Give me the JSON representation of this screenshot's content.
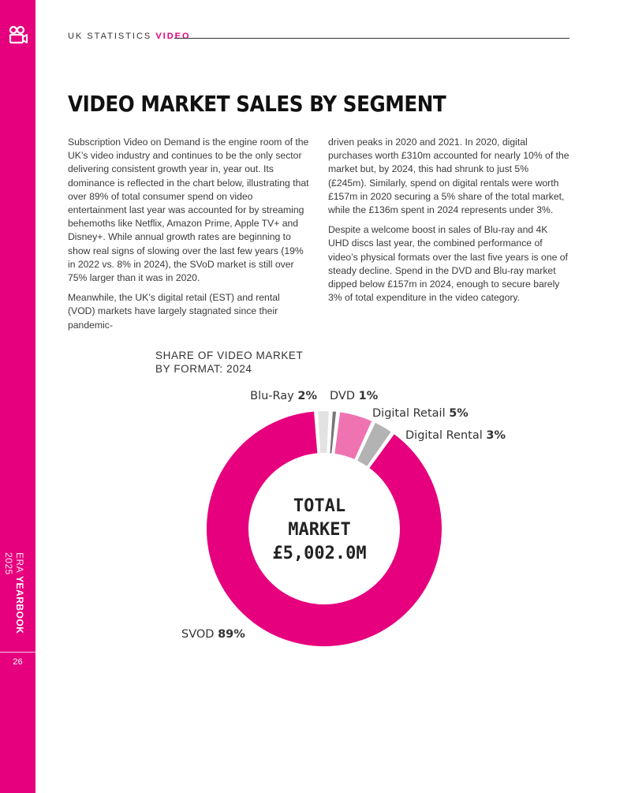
{
  "header": {
    "prefix": "UK STATISTICS",
    "accent": "VIDEO"
  },
  "sidebar": {
    "brand_light": "ERA",
    "brand_bold": "YEARBOOK",
    "year": "2025",
    "page_number": "26",
    "icon": "video-camera-icon"
  },
  "title": "VIDEO MARKET SALES BY SEGMENT",
  "body": {
    "left": [
      "Subscription Video on Demand is the engine room of the UK’s video industry and continues to be the only sector delivering consistent growth year in, year out. Its dominance is reflected in the chart below, illustrating that over 89% of total consumer spend on video entertainment last year was accounted for by streaming behemoths like Netflix, Amazon Prime, Apple TV+ and Disney+. While annual growth rates are beginning to show real signs of slowing over the last few years (19% in 2022 vs. 8% in 2024), the SVoD market is still over 75% larger than it was in 2020.",
      "Meanwhile, the UK’s digital retail (EST) and rental (VOD) markets have largely stagnated since their pandemic-"
    ],
    "right": [
      "driven peaks in 2020 and 2021. In 2020, digital purchases worth £310m accounted for nearly 10% of the market but, by 2024, this had shrunk to just 5% (£245m). Similarly, spend on digital rentals were worth £157m in 2020 securing a 5% share of the total market, while the £136m spent in 2024 represents under 3%.",
      "Despite a welcome boost in sales of Blu-ray and 4K UHD discs last year, the combined performance of video’s physical formats over the last five years is one of steady decline. Spend in the DVD and Blu-ray market dipped below £157m in 2024, enough to secure barely 3% of total expenditure in the video category."
    ]
  },
  "chart_data": {
    "type": "pie",
    "title": "SHARE OF VIDEO MARKET BY FORMAT: 2024",
    "title_lines": [
      "SHARE OF VIDEO MARKET",
      "BY FORMAT: 2024"
    ],
    "center_lines": [
      "TOTAL",
      "MARKET",
      "£5,002.0M"
    ],
    "series": [
      {
        "name": "Blu-Ray",
        "label": "2%",
        "value": 2,
        "color": "#e2e2e2"
      },
      {
        "name": "DVD",
        "label": "1%",
        "value": 1,
        "color": "#777777"
      },
      {
        "name": "Digital Retail",
        "label": "5%",
        "value": 5,
        "color": "#ef73b1"
      },
      {
        "name": "Digital Rental",
        "label": "3%",
        "value": 3,
        "color": "#b3b3b3"
      },
      {
        "name": "SVOD",
        "label": "89%",
        "value": 89,
        "color": "#e6007e"
      }
    ]
  },
  "colors": {
    "accent": "#e6007e",
    "text": "#333333"
  }
}
